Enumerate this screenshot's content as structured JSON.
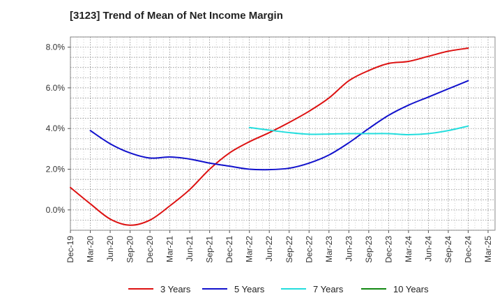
{
  "chart_data": {
    "type": "line",
    "title": "[3123]  Trend of Mean of Net Income Margin",
    "xlabel": "",
    "ylabel": "",
    "x": [
      "Dec-19",
      "Mar-20",
      "Jun-20",
      "Sep-20",
      "Dec-20",
      "Mar-21",
      "Jun-21",
      "Sep-21",
      "Dec-21",
      "Mar-22",
      "Jun-22",
      "Sep-22",
      "Dec-22",
      "Mar-23",
      "Jun-23",
      "Sep-23",
      "Dec-23",
      "Mar-24",
      "Jun-24",
      "Sep-24",
      "Dec-24",
      "Mar-25"
    ],
    "ylim": [
      -1.0,
      8.5
    ],
    "yticks": [
      0,
      2,
      4,
      6,
      8
    ],
    "ytick_labels": [
      "0.0%",
      "2.0%",
      "4.0%",
      "6.0%",
      "8.0%"
    ],
    "grid": true,
    "legend_position": "bottom",
    "series": [
      {
        "name": "3 Years",
        "color": "#dd1111",
        "values": [
          1.1,
          0.3,
          -0.45,
          -0.75,
          -0.5,
          0.2,
          1.0,
          2.0,
          2.8,
          3.35,
          3.8,
          4.3,
          4.85,
          5.5,
          6.35,
          6.85,
          7.2,
          7.3,
          7.55,
          7.8,
          7.95,
          null
        ]
      },
      {
        "name": "5 Years",
        "color": "#1111cc",
        "values": [
          null,
          3.9,
          3.25,
          2.8,
          2.55,
          2.6,
          2.5,
          2.3,
          2.15,
          2.0,
          1.98,
          2.05,
          2.3,
          2.7,
          3.3,
          4.0,
          4.65,
          5.15,
          5.55,
          5.95,
          6.35,
          null
        ]
      },
      {
        "name": "7 Years",
        "color": "#22dddd",
        "values": [
          null,
          null,
          null,
          null,
          null,
          null,
          null,
          null,
          null,
          4.05,
          3.92,
          3.8,
          3.72,
          3.73,
          3.75,
          3.75,
          3.75,
          3.7,
          3.75,
          3.9,
          4.12,
          null
        ]
      },
      {
        "name": "10 Years",
        "color": "#118811",
        "values": [
          null,
          null,
          null,
          null,
          null,
          null,
          null,
          null,
          null,
          null,
          null,
          null,
          null,
          null,
          null,
          null,
          null,
          null,
          null,
          null,
          null,
          null
        ]
      }
    ]
  }
}
